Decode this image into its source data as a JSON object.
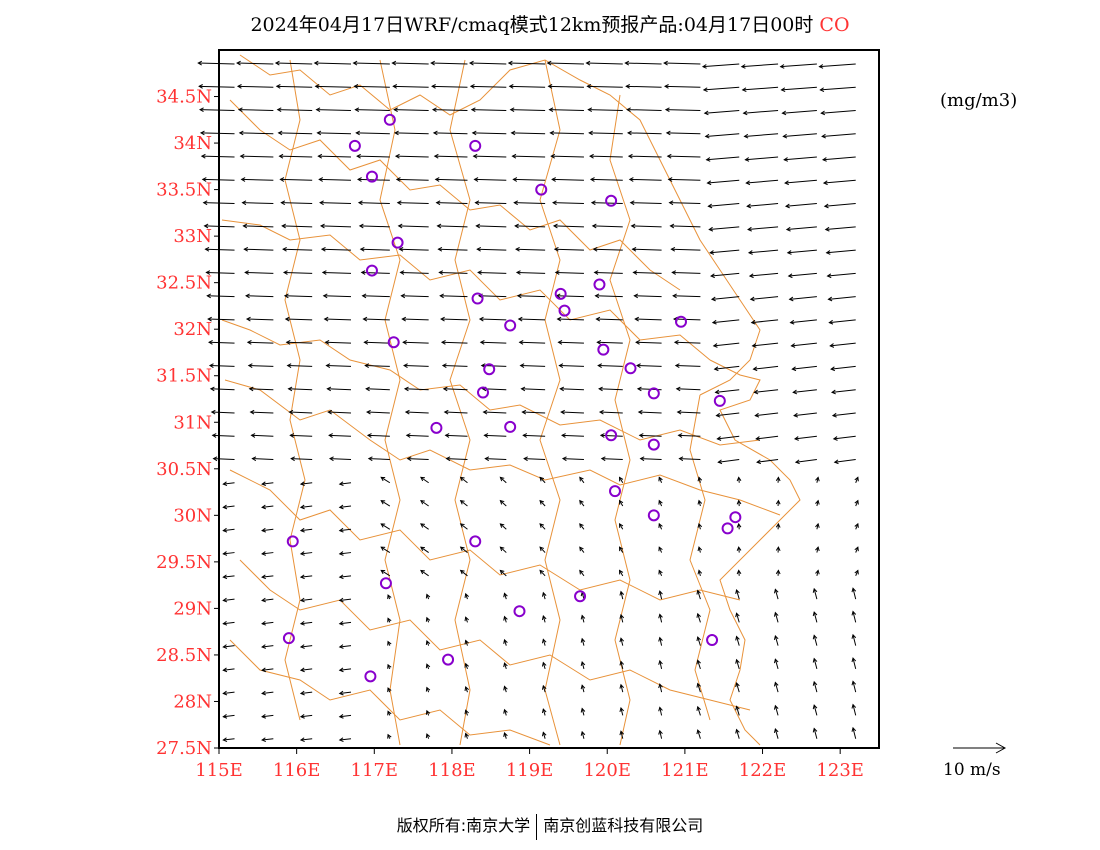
{
  "title": {
    "main": "2024年04月17日WRF/cmaq模式12km预报产品:04月17日00时",
    "pollutant": "CO"
  },
  "unit_label": "(mg/m3)",
  "reference_vector": {
    "label": "10 m/s",
    "speed_ms": 10
  },
  "copyright": {
    "left": "版权所有:南京大学",
    "right": "南京创蓝科技有限公司"
  },
  "colors": {
    "boundary": "#e8923a",
    "axis_label": "#ff3333",
    "station": "#8800cc",
    "arrow": "#000000"
  },
  "axes": {
    "lon_range": [
      115,
      123.5
    ],
    "lat_range": [
      27.5,
      35
    ],
    "x_ticks": [
      "115E",
      "116E",
      "117E",
      "118E",
      "119E",
      "120E",
      "121E",
      "122E",
      "123E"
    ],
    "y_ticks": [
      "27.5N",
      "28N",
      "28.5N",
      "29N",
      "29.5N",
      "30N",
      "30.5N",
      "31N",
      "31.5N",
      "32N",
      "32.5N",
      "33N",
      "33.5N",
      "34N",
      "34.5N"
    ]
  },
  "stations": [
    [
      117.2,
      34.25
    ],
    [
      116.75,
      33.97
    ],
    [
      118.3,
      33.97
    ],
    [
      116.97,
      33.64
    ],
    [
      119.15,
      33.5
    ],
    [
      120.05,
      33.38
    ],
    [
      117.3,
      32.93
    ],
    [
      116.97,
      32.63
    ],
    [
      119.9,
      32.48
    ],
    [
      118.33,
      32.33
    ],
    [
      119.4,
      32.38
    ],
    [
      119.45,
      32.2
    ],
    [
      118.75,
      32.04
    ],
    [
      120.95,
      32.08
    ],
    [
      117.25,
      31.86
    ],
    [
      119.95,
      31.78
    ],
    [
      118.48,
      31.57
    ],
    [
      120.3,
      31.58
    ],
    [
      118.4,
      31.32
    ],
    [
      120.6,
      31.31
    ],
    [
      121.45,
      31.23
    ],
    [
      117.8,
      30.94
    ],
    [
      118.75,
      30.95
    ],
    [
      120.05,
      30.86
    ],
    [
      120.6,
      30.76
    ],
    [
      120.1,
      30.26
    ],
    [
      121.65,
      29.98
    ],
    [
      120.6,
      30.0
    ],
    [
      121.55,
      29.86
    ],
    [
      115.95,
      29.72
    ],
    [
      118.3,
      29.72
    ],
    [
      117.15,
      29.27
    ],
    [
      119.65,
      29.13
    ],
    [
      118.87,
      28.97
    ],
    [
      115.9,
      28.68
    ],
    [
      117.95,
      28.45
    ],
    [
      121.35,
      28.66
    ],
    [
      116.95,
      28.27
    ]
  ]
}
